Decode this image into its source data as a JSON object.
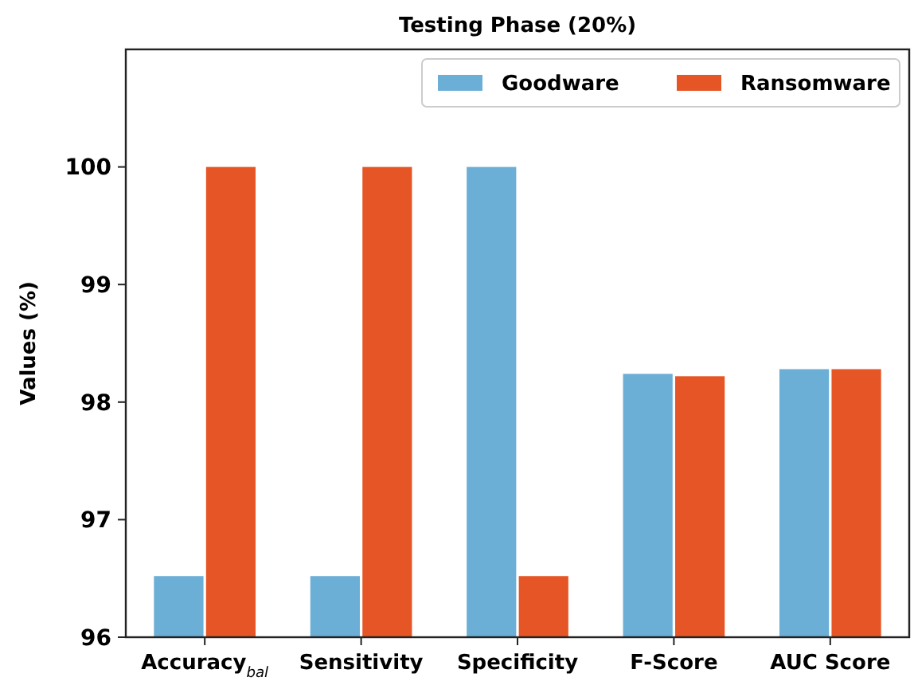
{
  "chart_data": {
    "type": "bar",
    "title": "Testing Phase (20%)",
    "ylabel": "Values (%)",
    "categories": [
      "Accuracy$_{bal}$",
      "Sensitivity",
      "Specificity",
      "F-Score",
      "AUC Score"
    ],
    "series": [
      {
        "name": "Goodware",
        "color": "#6baed6",
        "values": [
          96.52,
          96.52,
          100,
          98.24,
          98.28
        ]
      },
      {
        "name": "Ransomware",
        "color": "#e55526",
        "values": [
          100,
          100,
          96.52,
          98.22,
          98.28
        ]
      }
    ],
    "ylim": [
      96,
      101
    ],
    "yticks": [
      96,
      97,
      98,
      99,
      100
    ],
    "grid": false,
    "legend": "top right"
  }
}
